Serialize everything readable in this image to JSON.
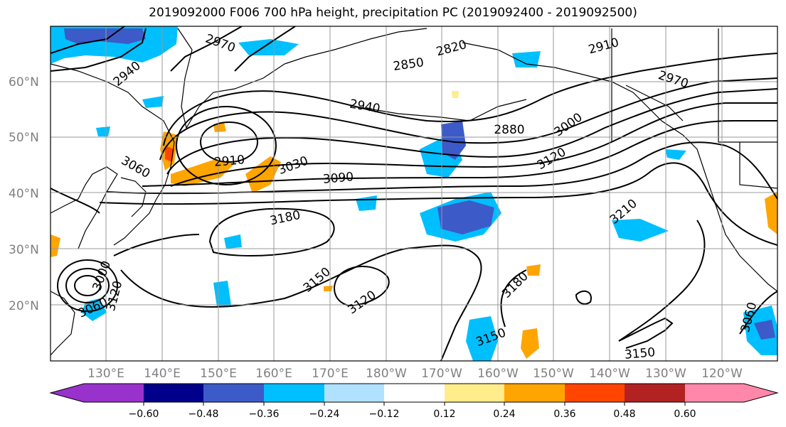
{
  "title": "2019092000 F006 700 hPa height, precipitation PC (2019092400 - 2019092500)",
  "lat_labels": [
    "60°N",
    "50°N",
    "40°N",
    "30°N",
    "20°N"
  ],
  "lon_labels": [
    "130°E",
    "140°E",
    "150°E",
    "160°E",
    "170°E",
    "180°W",
    "170°W",
    "160°W",
    "150°W",
    "140°W",
    "130°W",
    "120°W"
  ],
  "contour_labels": [
    "2970",
    "2940",
    "2820",
    "2850",
    "2910",
    "2970",
    "2940",
    "2880",
    "3000",
    "3120",
    "3060",
    "2910",
    "3030",
    "3090",
    "3180",
    "3210",
    "3150",
    "3120",
    "3180",
    "3150",
    "3150",
    "3060",
    "3120",
    "3000",
    "3060"
  ],
  "colorbar": {
    "ticks": [
      "−0.60",
      "−0.48",
      "−0.36",
      "−0.24",
      "−0.12",
      "0.12",
      "0.24",
      "0.36",
      "0.48",
      "0.60"
    ],
    "colors": [
      "#9932cc",
      "#00008b",
      "#3c5ac8",
      "#00bfff",
      "#b0e2ff",
      "#ffffff",
      "#ffec8b",
      "#ffa500",
      "#ff4500",
      "#b22222",
      "#ff88aa"
    ]
  },
  "chart_data": {
    "type": "heatmap",
    "title": "2019092000 F006 700 hPa height, precipitation PC (2019092400 - 2019092500)",
    "x_range": [
      "120°E",
      "110°W"
    ],
    "y_range": [
      "10°N",
      "70°N"
    ],
    "contour_variable": "700 hPa height",
    "contour_levels_labeled": [
      2820,
      2850,
      2880,
      2910,
      2940,
      2970,
      3000,
      3030,
      3060,
      3090,
      3120,
      3150,
      3180,
      3210
    ],
    "fill_variable": "precipitation PC",
    "colorbar_levels": [
      -0.6,
      -0.48,
      -0.36,
      -0.24,
      -0.12,
      0.12,
      0.24,
      0.36,
      0.48,
      0.6
    ],
    "grid": true
  }
}
